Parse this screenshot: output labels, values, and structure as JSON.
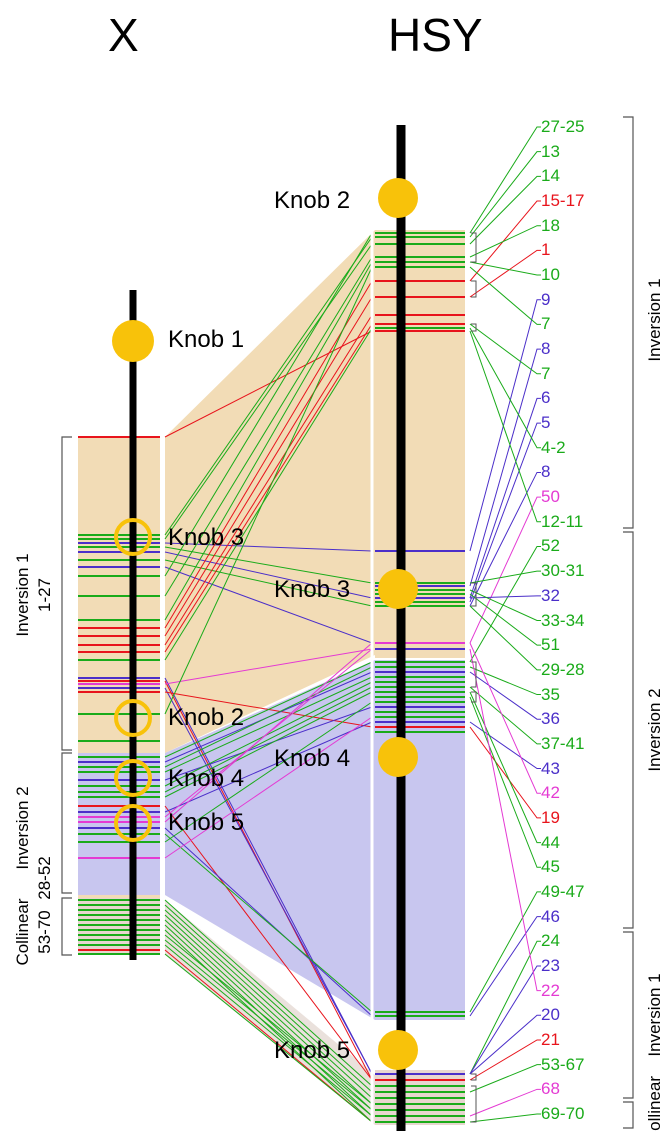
{
  "titles": {
    "x_chrom": "X",
    "hsy_chrom": "HSY"
  },
  "knobs": {
    "x_knob1": "Knob 1",
    "x_knob3": "Knob 3",
    "x_knob2": "Knob 2",
    "x_knob4": "Knob 4",
    "x_knob5": "Knob 5",
    "h_knob2": "Knob 2",
    "h_knob3": "Knob 3",
    "h_knob4": "Knob 4",
    "h_knob5": "Knob 5"
  },
  "x_regions": {
    "inv1_name": "Inversion 1",
    "inv1_range": "1-27",
    "inv2_name": "Inversion 2",
    "inv2_range": "28-52",
    "col_name": "Collinear",
    "col_range": "53-70"
  },
  "hsy_regions": {
    "inv1": "Inversion 1",
    "inv2": "Inversion 2",
    "inv1b": "Inversion 1",
    "collinear": "Collinear"
  },
  "colors": {
    "green": "#1aab1a",
    "red": "#e8141c",
    "blue": "#4b2fc9",
    "magenta": "#e43ad3",
    "tan": "#f2dcb6",
    "lavender": "#c8c6ef",
    "knob": "#f8c20a"
  },
  "markers": [
    {
      "label": "27-25",
      "color": "green"
    },
    {
      "label": "13",
      "color": "green"
    },
    {
      "label": "14",
      "color": "green"
    },
    {
      "label": "15-17",
      "color": "red"
    },
    {
      "label": "18",
      "color": "green"
    },
    {
      "label": "1",
      "color": "red"
    },
    {
      "label": "10",
      "color": "green"
    },
    {
      "label": "9",
      "color": "blue"
    },
    {
      "label": "7",
      "color": "green"
    },
    {
      "label": "8",
      "color": "blue"
    },
    {
      "label": "7",
      "color": "green"
    },
    {
      "label": "6",
      "color": "blue"
    },
    {
      "label": "5",
      "color": "blue"
    },
    {
      "label": "4-2",
      "color": "green"
    },
    {
      "label": "8",
      "color": "blue"
    },
    {
      "label": "50",
      "color": "magenta"
    },
    {
      "label": "12-11",
      "color": "green"
    },
    {
      "label": "52",
      "color": "green"
    },
    {
      "label": "30-31",
      "color": "green"
    },
    {
      "label": "32",
      "color": "blue"
    },
    {
      "label": "33-34",
      "color": "green"
    },
    {
      "label": "51",
      "color": "green"
    },
    {
      "label": "29-28",
      "color": "green"
    },
    {
      "label": "35",
      "color": "green"
    },
    {
      "label": "36",
      "color": "blue"
    },
    {
      "label": "37-41",
      "color": "green"
    },
    {
      "label": "43",
      "color": "blue"
    },
    {
      "label": "42",
      "color": "magenta"
    },
    {
      "label": "19",
      "color": "red"
    },
    {
      "label": "44",
      "color": "green"
    },
    {
      "label": "45",
      "color": "green"
    },
    {
      "label": "49-47",
      "color": "green"
    },
    {
      "label": "46",
      "color": "blue"
    },
    {
      "label": "24",
      "color": "green"
    },
    {
      "label": "23",
      "color": "blue"
    },
    {
      "label": "22",
      "color": "magenta"
    },
    {
      "label": "20",
      "color": "blue"
    },
    {
      "label": "21",
      "color": "red"
    },
    {
      "label": "53-67",
      "color": "green"
    },
    {
      "label": "68",
      "color": "magenta"
    },
    {
      "label": "69-70",
      "color": "green"
    }
  ]
}
